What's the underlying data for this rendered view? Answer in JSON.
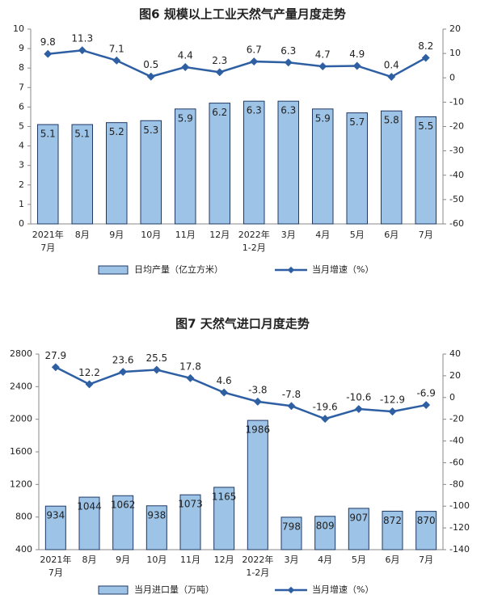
{
  "chart_data": [
    {
      "type": "bar-line",
      "title": "图6  规模以上工业天然气产量月度走势",
      "categories": [
        [
          "2021年",
          "7月"
        ],
        [
          "8月"
        ],
        [
          "9月"
        ],
        [
          "10月"
        ],
        [
          "11月"
        ],
        [
          "12月"
        ],
        [
          "2022年",
          "1-2月"
        ],
        [
          "3月"
        ],
        [
          "4月"
        ],
        [
          "5月"
        ],
        [
          "6月"
        ],
        [
          "7月"
        ]
      ],
      "series": [
        {
          "name": "日均产量（亿立方米）",
          "color": "#9dc3e6",
          "values": [
            5.1,
            5.1,
            5.2,
            5.3,
            5.9,
            6.2,
            6.3,
            6.3,
            5.9,
            5.7,
            5.8,
            5.5
          ]
        },
        {
          "name": "当月增速（%）",
          "color": "#2e5fa3",
          "axis": "y2",
          "values": [
            9.8,
            11.3,
            7.1,
            0.5,
            4.4,
            2.3,
            6.7,
            6.3,
            4.7,
            4.9,
            0.4,
            8.2
          ]
        }
      ],
      "ylim": [
        0,
        10
      ],
      "yticks": [
        0,
        1,
        2,
        3,
        4,
        5,
        6,
        7,
        8,
        9,
        10
      ],
      "y2lim": [
        -60,
        20
      ],
      "y2ticks": [
        -60,
        -50,
        -40,
        -30,
        -20,
        -10,
        0,
        10,
        20
      ]
    },
    {
      "type": "bar-line",
      "title": "图7  天然气进口月度走势",
      "categories": [
        [
          "2021年",
          "7月"
        ],
        [
          "8月"
        ],
        [
          "9月"
        ],
        [
          "10月"
        ],
        [
          "11月"
        ],
        [
          "12月"
        ],
        [
          "2022年",
          "1-2月"
        ],
        [
          "3月"
        ],
        [
          "4月"
        ],
        [
          "5月"
        ],
        [
          "6月"
        ],
        [
          "7月"
        ]
      ],
      "series": [
        {
          "name": "当月进口量（万吨）",
          "color": "#9dc3e6",
          "values": [
            934,
            1044,
            1062,
            938,
            1073,
            1165,
            1986,
            798,
            809,
            907,
            872,
            870
          ]
        },
        {
          "name": "当月增速（%）",
          "color": "#2e5fa3",
          "axis": "y2",
          "values": [
            27.9,
            12.2,
            23.6,
            25.5,
            17.8,
            4.6,
            -3.8,
            -7.8,
            -19.6,
            -10.6,
            -12.9,
            -6.9
          ]
        }
      ],
      "ylim": [
        400,
        2800
      ],
      "yticks": [
        400,
        800,
        1200,
        1600,
        2000,
        2400,
        2800
      ],
      "y2lim": [
        -140,
        40
      ],
      "y2ticks": [
        -140,
        -120,
        -100,
        -80,
        -60,
        -40,
        -20,
        0,
        20,
        40
      ]
    }
  ]
}
